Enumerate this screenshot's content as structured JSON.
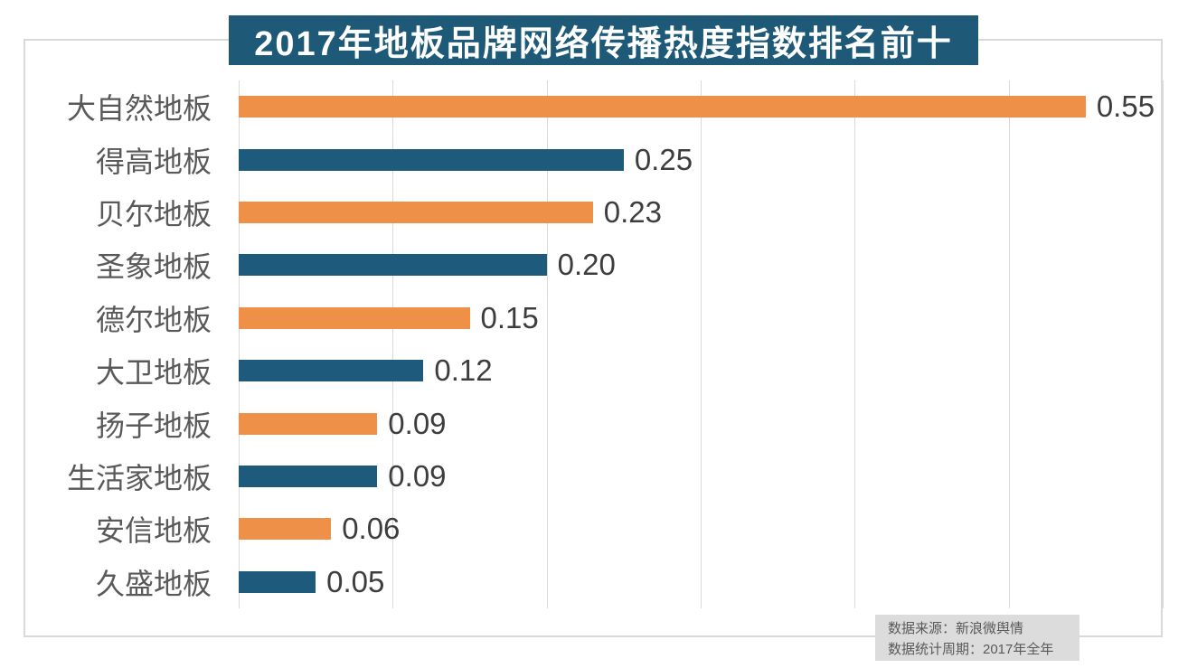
{
  "title": {
    "text": "2017年地板品牌网络传播热度指数排名前十"
  },
  "chart_data": {
    "type": "bar",
    "orientation": "horizontal",
    "title": "2017年地板品牌网络传播热度指数排名前十",
    "categories": [
      "大自然地板",
      "得高地板",
      "贝尔地板",
      "圣象地板",
      "德尔地板",
      "大卫地板",
      "扬子地板",
      "生活家地板",
      "安信地板",
      "久盛地板"
    ],
    "values": [
      0.55,
      0.25,
      0.23,
      0.2,
      0.15,
      0.12,
      0.09,
      0.09,
      0.06,
      0.05
    ],
    "value_labels": [
      "0.55",
      "0.25",
      "0.23",
      "0.20",
      "0.15",
      "0.12",
      "0.09",
      "0.09",
      "0.06",
      "0.05"
    ],
    "xlim": [
      0,
      0.6
    ],
    "gridline_interval": 0.1,
    "grid": true,
    "legend": "none",
    "bar_colors_alternating": [
      "#ef9049",
      "#1d5a7c"
    ]
  },
  "footer": {
    "line1": "数据来源：新浪微舆情",
    "line2": "数据统计周期：2017年全年"
  },
  "colors": {
    "banner_bg": "#1e5a77",
    "banner_text": "#ffffff",
    "bar_orange": "#ef9049",
    "bar_blue": "#1d5a7c",
    "category_text": "#595959",
    "value_text": "#3d3d3d",
    "gridline": "#d9d9d9",
    "border": "#d9d9d9",
    "footer_bg": "#dcdcdc",
    "footer_text": "#595959"
  }
}
